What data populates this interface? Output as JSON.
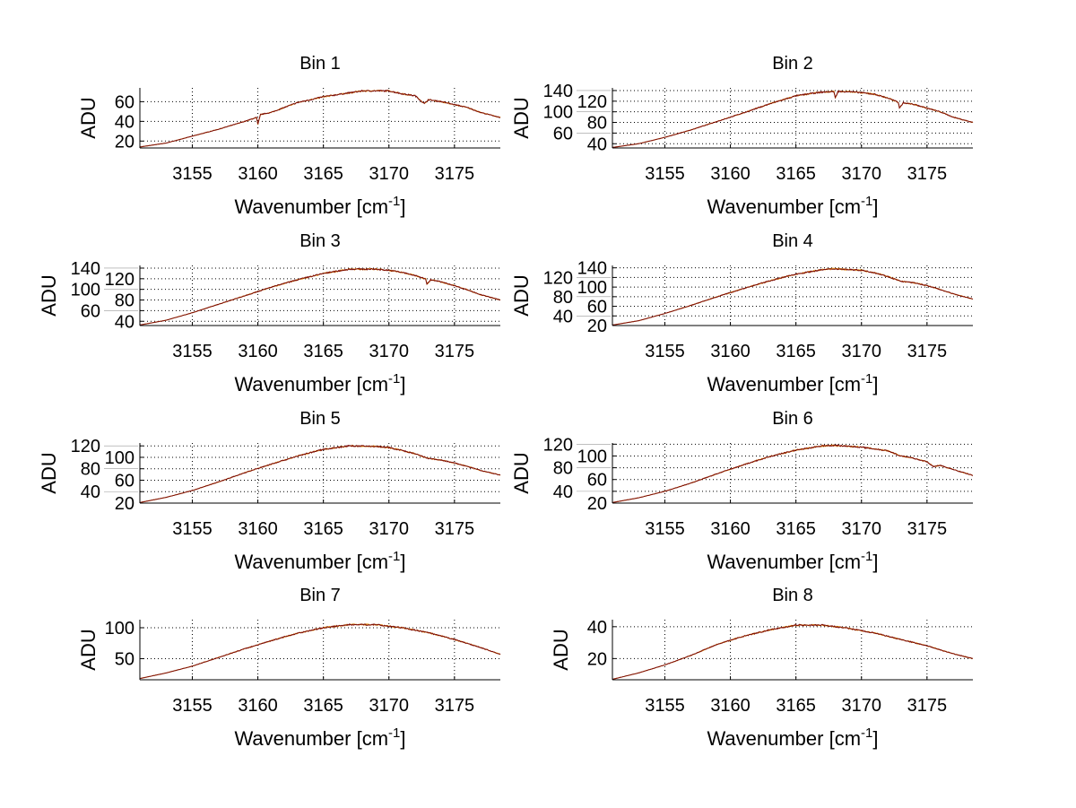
{
  "chart_data": [
    {
      "type": "line",
      "title": "Bin 1",
      "xlabel": "Wavenumber [cm",
      "xlabel_sup": "-1",
      "xlabel_end": "]",
      "ylabel": "ADU",
      "xlim": [
        3151,
        3178.5
      ],
      "ylim": [
        13,
        74
      ],
      "xticks": [
        3155,
        3160,
        3165,
        3170,
        3175
      ],
      "yticks": [
        20,
        40,
        60
      ],
      "grid": true,
      "points": [
        [
          3151,
          14
        ],
        [
          3153,
          18
        ],
        [
          3155,
          25
        ],
        [
          3157,
          32
        ],
        [
          3159,
          40
        ],
        [
          3159.9,
          44
        ],
        [
          3160,
          37
        ],
        [
          3160.2,
          47
        ],
        [
          3161,
          49
        ],
        [
          3162,
          54
        ],
        [
          3163,
          59
        ],
        [
          3164,
          62
        ],
        [
          3165,
          65
        ],
        [
          3166,
          67
        ],
        [
          3167,
          69
        ],
        [
          3168,
          71
        ],
        [
          3169,
          71
        ],
        [
          3170,
          71
        ],
        [
          3171,
          68
        ],
        [
          3172,
          66
        ],
        [
          3172.7,
          58
        ],
        [
          3173,
          62
        ],
        [
          3174,
          60
        ],
        [
          3175,
          57
        ],
        [
          3176,
          54
        ],
        [
          3177,
          49
        ],
        [
          3178.5,
          44
        ]
      ]
    },
    {
      "type": "line",
      "title": "Bin 2",
      "xlabel": "Wavenumber [cm",
      "xlabel_sup": "-1",
      "xlabel_end": "]",
      "ylabel": "ADU",
      "xlim": [
        3151,
        3178.5
      ],
      "ylim": [
        32,
        145
      ],
      "xticks": [
        3155,
        3160,
        3165,
        3170,
        3175
      ],
      "yticks": [
        40,
        60,
        80,
        100,
        120,
        140
      ],
      "grid": true,
      "points": [
        [
          3151,
          33
        ],
        [
          3153,
          40
        ],
        [
          3155,
          52
        ],
        [
          3157,
          66
        ],
        [
          3159,
          82
        ],
        [
          3161,
          98
        ],
        [
          3163,
          115
        ],
        [
          3165,
          130
        ],
        [
          3166,
          134
        ],
        [
          3167,
          137
        ],
        [
          3167.9,
          138
        ],
        [
          3168,
          126
        ],
        [
          3168.2,
          138
        ],
        [
          3169,
          138
        ],
        [
          3170,
          136
        ],
        [
          3171,
          133
        ],
        [
          3172,
          126
        ],
        [
          3172.8,
          118
        ],
        [
          3172.9,
          108
        ],
        [
          3173.2,
          117
        ],
        [
          3174,
          114
        ],
        [
          3175,
          107
        ],
        [
          3176,
          100
        ],
        [
          3177,
          90
        ],
        [
          3178.5,
          80
        ]
      ]
    },
    {
      "type": "line",
      "title": "Bin 3",
      "xlabel": "Wavenumber [cm",
      "xlabel_sup": "-1",
      "xlabel_end": "]",
      "ylabel": "ADU",
      "xlim": [
        3151,
        3178.5
      ],
      "ylim": [
        32,
        145
      ],
      "xticks": [
        3155,
        3160,
        3165,
        3170,
        3175
      ],
      "yticks": [
        40,
        60,
        80,
        100,
        120,
        140
      ],
      "grid": true,
      "points": [
        [
          3151,
          33
        ],
        [
          3153,
          42
        ],
        [
          3155,
          56
        ],
        [
          3157,
          72
        ],
        [
          3159,
          88
        ],
        [
          3161,
          104
        ],
        [
          3163,
          118
        ],
        [
          3165,
          130
        ],
        [
          3167,
          138
        ],
        [
          3169,
          138
        ],
        [
          3170,
          136
        ],
        [
          3171,
          132
        ],
        [
          3172,
          126
        ],
        [
          3172.8,
          120
        ],
        [
          3172.9,
          110
        ],
        [
          3173.2,
          118
        ],
        [
          3174,
          114
        ],
        [
          3175,
          107
        ],
        [
          3176,
          99
        ],
        [
          3177,
          90
        ],
        [
          3178.5,
          80
        ]
      ]
    },
    {
      "type": "line",
      "title": "Bin 4",
      "xlabel": "Wavenumber [cm",
      "xlabel_sup": "-1",
      "xlabel_end": "]",
      "ylabel": "ADU",
      "xlim": [
        3151,
        3178.5
      ],
      "ylim": [
        20,
        145
      ],
      "xticks": [
        3155,
        3160,
        3165,
        3170,
        3175
      ],
      "yticks": [
        20,
        40,
        60,
        80,
        100,
        120,
        140
      ],
      "grid": true,
      "points": [
        [
          3151,
          21
        ],
        [
          3153,
          30
        ],
        [
          3155,
          45
        ],
        [
          3157,
          62
        ],
        [
          3159,
          80
        ],
        [
          3161,
          97
        ],
        [
          3163,
          113
        ],
        [
          3165,
          127
        ],
        [
          3167,
          136
        ],
        [
          3168,
          138
        ],
        [
          3170,
          135
        ],
        [
          3171,
          130
        ],
        [
          3172,
          122
        ],
        [
          3173,
          112
        ],
        [
          3174,
          109
        ],
        [
          3175,
          103
        ],
        [
          3176,
          95
        ],
        [
          3177,
          86
        ],
        [
          3178.5,
          75
        ]
      ]
    },
    {
      "type": "line",
      "title": "Bin 5",
      "xlabel": "Wavenumber [cm",
      "xlabel_sup": "-1",
      "xlabel_end": "]",
      "ylabel": "ADU",
      "xlim": [
        3151,
        3178.5
      ],
      "ylim": [
        20,
        125
      ],
      "xticks": [
        3155,
        3160,
        3165,
        3170,
        3175
      ],
      "yticks": [
        20,
        40,
        60,
        80,
        100,
        120
      ],
      "grid": true,
      "points": [
        [
          3151,
          21
        ],
        [
          3153,
          30
        ],
        [
          3155,
          42
        ],
        [
          3157,
          57
        ],
        [
          3159,
          73
        ],
        [
          3161,
          88
        ],
        [
          3163,
          102
        ],
        [
          3165,
          114
        ],
        [
          3167,
          120
        ],
        [
          3169,
          119
        ],
        [
          3170,
          117
        ],
        [
          3171,
          112
        ],
        [
          3172,
          106
        ],
        [
          3173,
          98
        ],
        [
          3174,
          95
        ],
        [
          3175,
          90
        ],
        [
          3176,
          84
        ],
        [
          3177,
          77
        ],
        [
          3178.5,
          69
        ]
      ]
    },
    {
      "type": "line",
      "title": "Bin 6",
      "xlabel": "Wavenumber [cm",
      "xlabel_sup": "-1",
      "xlabel_end": "]",
      "ylabel": "ADU",
      "xlim": [
        3151,
        3178.5
      ],
      "ylim": [
        20,
        122
      ],
      "xticks": [
        3155,
        3160,
        3165,
        3170,
        3175
      ],
      "yticks": [
        20,
        40,
        60,
        80,
        100,
        120
      ],
      "grid": true,
      "points": [
        [
          3151,
          21
        ],
        [
          3153,
          29
        ],
        [
          3155,
          40
        ],
        [
          3157,
          54
        ],
        [
          3159,
          70
        ],
        [
          3161,
          85
        ],
        [
          3163,
          99
        ],
        [
          3165,
          110
        ],
        [
          3167,
          117
        ],
        [
          3168,
          118
        ],
        [
          3170,
          115
        ],
        [
          3172,
          109
        ],
        [
          3173,
          100
        ],
        [
          3174,
          96
        ],
        [
          3175,
          90
        ],
        [
          3175.5,
          82
        ],
        [
          3176,
          84
        ],
        [
          3177,
          77
        ],
        [
          3178.5,
          67
        ]
      ]
    },
    {
      "type": "line",
      "title": "Bin 7",
      "xlabel": "Wavenumber [cm",
      "xlabel_sup": "-1",
      "xlabel_end": "]",
      "ylabel": "ADU",
      "xlim": [
        3151,
        3178.5
      ],
      "ylim": [
        16,
        113
      ],
      "xticks": [
        3155,
        3160,
        3165,
        3170,
        3175
      ],
      "yticks": [
        50,
        100
      ],
      "grid": true,
      "points": [
        [
          3151,
          18
        ],
        [
          3153,
          27
        ],
        [
          3155,
          38
        ],
        [
          3157,
          52
        ],
        [
          3159,
          66
        ],
        [
          3161,
          79
        ],
        [
          3163,
          91
        ],
        [
          3165,
          100
        ],
        [
          3167,
          105
        ],
        [
          3169,
          105
        ],
        [
          3171,
          100
        ],
        [
          3173,
          92
        ],
        [
          3175,
          81
        ],
        [
          3177,
          68
        ],
        [
          3178.5,
          57
        ]
      ]
    },
    {
      "type": "line",
      "title": "Bin 8",
      "xlabel": "Wavenumber [cm",
      "xlabel_sup": "-1",
      "xlabel_end": "]",
      "ylabel": "ADU",
      "xlim": [
        3151,
        3178.5
      ],
      "ylim": [
        6.7,
        44.4
      ],
      "xticks": [
        3155,
        3160,
        3165,
        3170,
        3175
      ],
      "yticks": [
        20,
        40
      ],
      "grid": true,
      "points": [
        [
          3151,
          7
        ],
        [
          3153,
          11
        ],
        [
          3155,
          16
        ],
        [
          3157,
          22
        ],
        [
          3159,
          29
        ],
        [
          3161,
          34
        ],
        [
          3163,
          38
        ],
        [
          3165,
          41
        ],
        [
          3167,
          41
        ],
        [
          3169,
          39
        ],
        [
          3171,
          36
        ],
        [
          3173,
          32
        ],
        [
          3175,
          28
        ],
        [
          3177,
          23
        ],
        [
          3178.5,
          20
        ]
      ]
    }
  ],
  "colors": {
    "line": "#7a0a0a",
    "line_alt": "#e08a00",
    "grid": "#000000"
  }
}
